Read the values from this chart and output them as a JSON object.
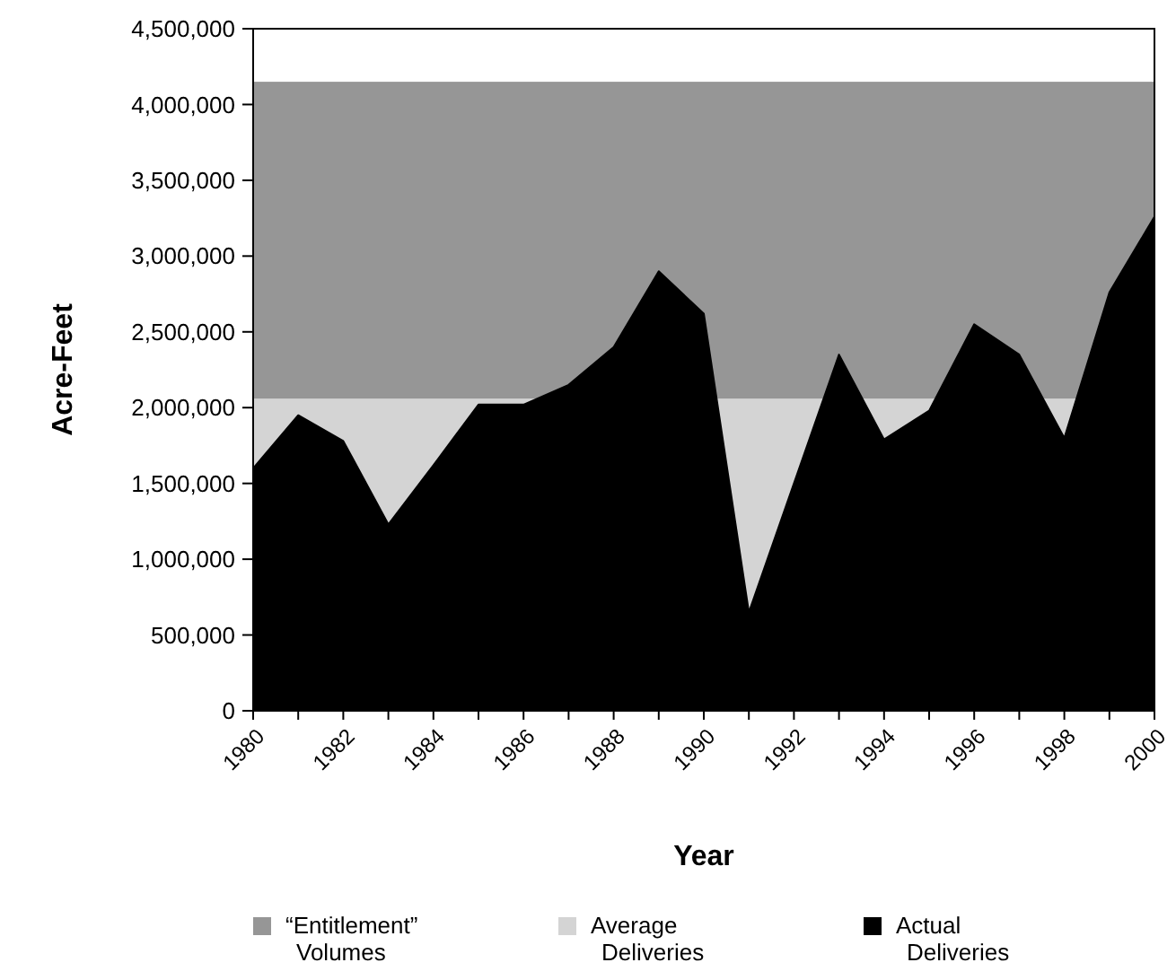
{
  "chart_data": {
    "type": "area",
    "xlabel": "Year",
    "ylabel": "Acre-Feet",
    "x": [
      1980,
      1981,
      1982,
      1983,
      1984,
      1985,
      1986,
      1987,
      1988,
      1989,
      1990,
      1991,
      1992,
      1993,
      1994,
      1995,
      1996,
      1997,
      1998,
      1999,
      2000
    ],
    "bands": [
      {
        "axis": "y",
        "from": 0,
        "to": 4150000,
        "label": "“Entitlement” Volumes",
        "color": "#969696"
      },
      {
        "axis": "y",
        "from": 0,
        "to": 2060000,
        "label": "Average Deliveries",
        "color": "#d4d4d4"
      }
    ],
    "series": [
      {
        "name": "Actual Deliveries",
        "color": "#000000",
        "values": [
          1600000,
          1950000,
          1780000,
          1230000,
          1620000,
          2020000,
          2020000,
          2150000,
          2400000,
          2900000,
          2620000,
          650000,
          1500000,
          2350000,
          1790000,
          1980000,
          2550000,
          2350000,
          1800000,
          2760000,
          3260000
        ]
      }
    ],
    "xlim": [
      1980,
      2000
    ],
    "xticks": [
      1980,
      {
        "value": 1981,
        "label": null
      },
      1982,
      {
        "value": 1983,
        "label": null
      },
      1984,
      {
        "value": 1985,
        "label": null
      },
      1986,
      {
        "value": 1987,
        "label": null
      },
      1988,
      {
        "value": 1989,
        "label": null
      },
      1990,
      {
        "value": 1991,
        "label": null
      },
      1992,
      {
        "value": 1993,
        "label": null
      },
      1994,
      {
        "value": 1995,
        "label": null
      },
      1996,
      {
        "value": 1997,
        "label": null
      },
      1998,
      {
        "value": 1999,
        "label": null
      },
      2000
    ],
    "ylim": [
      0,
      4500000
    ],
    "yticks": [
      {
        "value": 0,
        "label": "0"
      },
      {
        "value": 500000,
        "label": "500,000"
      },
      {
        "value": 1000000,
        "label": "1,000,000"
      },
      {
        "value": 1500000,
        "label": "1,500,000"
      },
      {
        "value": 2000000,
        "label": "2,000,000"
      },
      {
        "value": 2500000,
        "label": "2,500,000"
      },
      {
        "value": 3000000,
        "label": "3,000,000"
      },
      {
        "value": 3500000,
        "label": "3,500,000"
      },
      {
        "value": 4000000,
        "label": "4,000,000"
      },
      {
        "value": 4500000,
        "label": "4,500,000"
      }
    ],
    "grid": false,
    "legend": "bottom"
  }
}
